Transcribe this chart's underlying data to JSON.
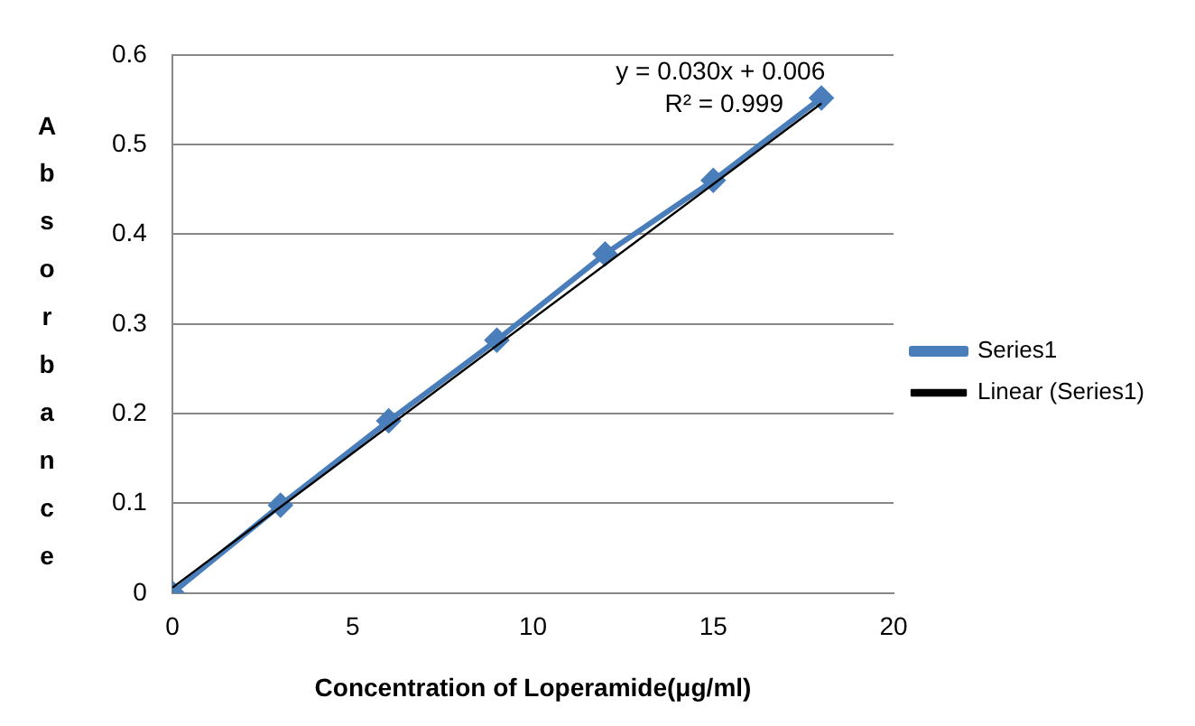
{
  "chart_data": {
    "type": "scatter",
    "xlabel": "Concentration of Loperamide(μg/ml)",
    "ylabel": "Absorbance",
    "xlim": [
      0,
      20
    ],
    "xticks": [
      0,
      5,
      10,
      15,
      20
    ],
    "ylim": [
      0,
      0.6
    ],
    "yticks": [
      0,
      0.1,
      0.2,
      0.3,
      0.4,
      0.5,
      0.6
    ],
    "grid": "y",
    "legend": "right",
    "marker": "diamond",
    "series": [
      {
        "name": "Series1",
        "type": "line",
        "color": "#4a7ebb",
        "x": [
          0,
          3,
          6,
          9,
          12,
          15,
          18
        ],
        "values": [
          0,
          0.098,
          0.192,
          0.282,
          0.378,
          0.46,
          0.552
        ]
      },
      {
        "name": "Linear (Series1)",
        "type": "line",
        "marker": "none",
        "color": "#000000",
        "x": [
          0,
          18
        ],
        "values": [
          0.006,
          0.546
        ]
      }
    ],
    "annotations": [
      "y = 0.030x + 0.006",
      "R² = 0.999"
    ]
  }
}
